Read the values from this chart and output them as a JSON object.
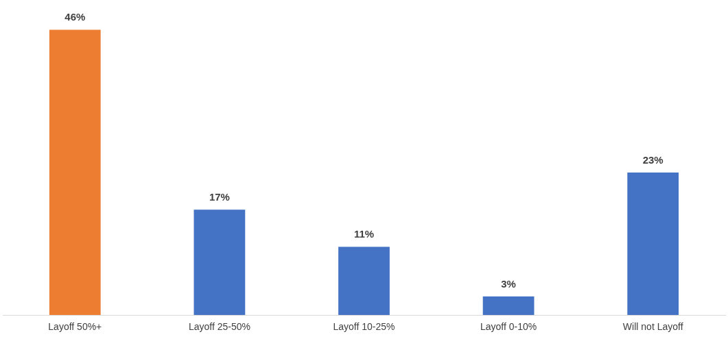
{
  "chart_data": {
    "type": "bar",
    "categories": [
      "Layoff 50%+",
      "Layoff 25-50%",
      "Layoff 10-25%",
      "Layoff 0-10%",
      "Will not Layoff"
    ],
    "values": [
      46,
      17,
      11,
      3,
      23
    ],
    "colors": [
      "#ed7d31",
      "#4472c4",
      "#4472c4",
      "#4472c4",
      "#4472c4"
    ],
    "value_labels": [
      "46%",
      "17%",
      "11%",
      "3%",
      "23%"
    ],
    "grid": false,
    "legend": false
  }
}
